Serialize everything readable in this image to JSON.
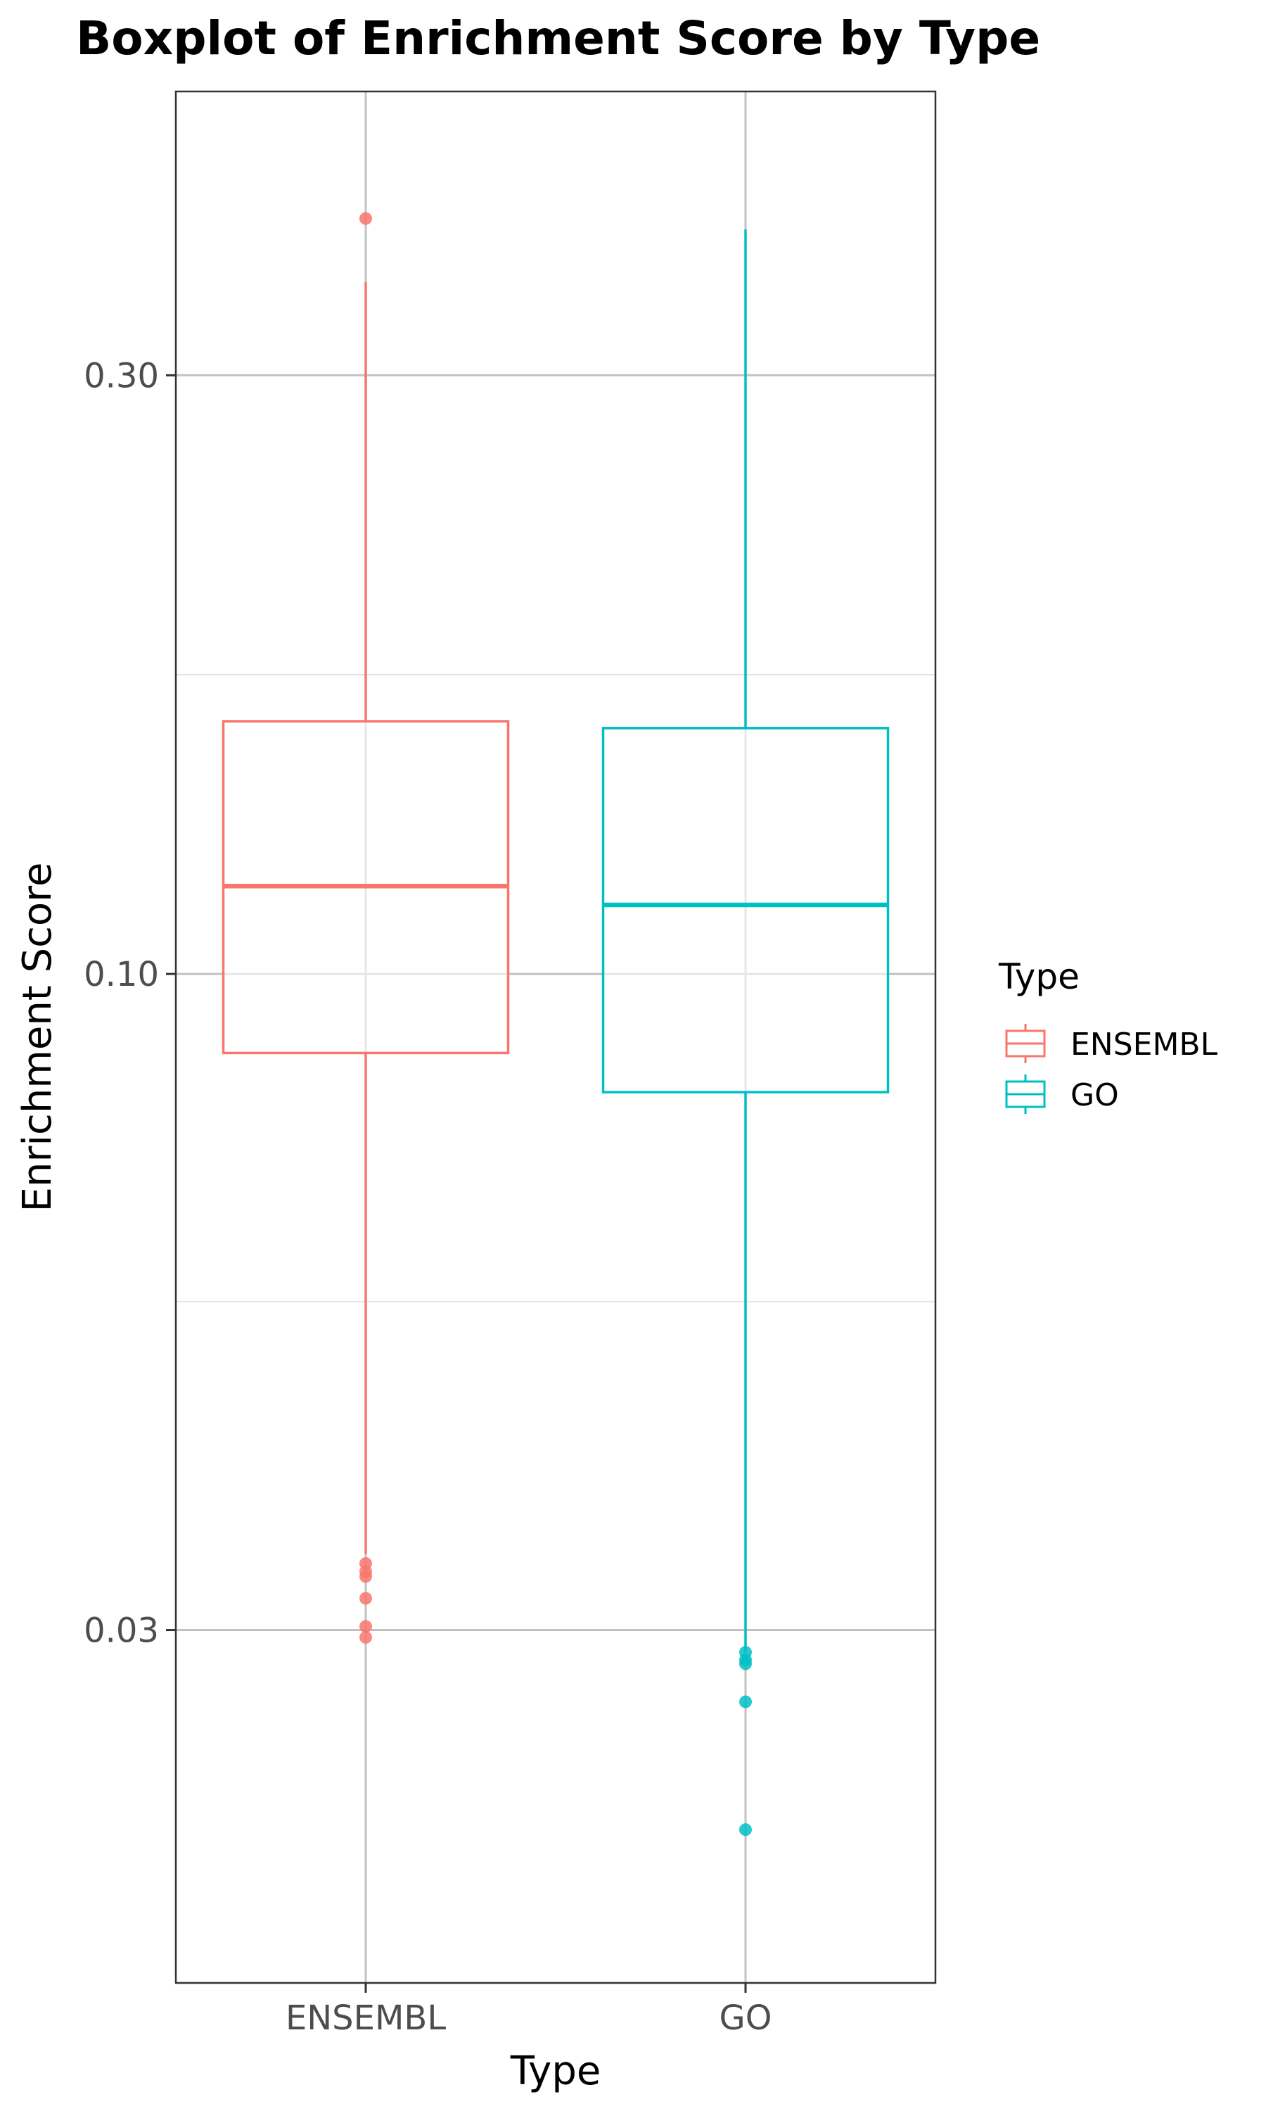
{
  "chart_data": {
    "type": "boxplot",
    "title": "Boxplot of Enrichment Score by Type",
    "xlabel": "Type",
    "ylabel": "Enrichment Score",
    "y_scale": "log10",
    "ylim": [
      0.0157,
      0.505
    ],
    "y_ticks": [
      {
        "value": 0.03,
        "label": "0.03"
      },
      {
        "value": 0.1,
        "label": "0.10"
      },
      {
        "value": 0.3,
        "label": "0.30"
      }
    ],
    "y_minor_gridlines": [
      0.0548,
      0.1732
    ],
    "grid": true,
    "categories": [
      "ENSEMBL",
      "GO"
    ],
    "series": [
      {
        "name": "ENSEMBL",
        "color": "#F8766D",
        "whisker_low": 0.0345,
        "q1": 0.0865,
        "median": 0.1175,
        "q3": 0.159,
        "whisker_high": 0.356,
        "outliers": [
          0.4,
          0.0339,
          0.0334,
          0.0331,
          0.0318,
          0.0302,
          0.0296
        ]
      },
      {
        "name": "GO",
        "color": "#00BFC4",
        "whisker_low": 0.0288,
        "q1": 0.0805,
        "median": 0.1135,
        "q3": 0.157,
        "whisker_high": 0.392,
        "outliers": [
          0.0288,
          0.0284,
          0.0282,
          0.0263,
          0.0208
        ]
      }
    ],
    "legend": {
      "title": "Type",
      "position": "right",
      "entries": [
        "ENSEMBL",
        "GO"
      ]
    }
  }
}
